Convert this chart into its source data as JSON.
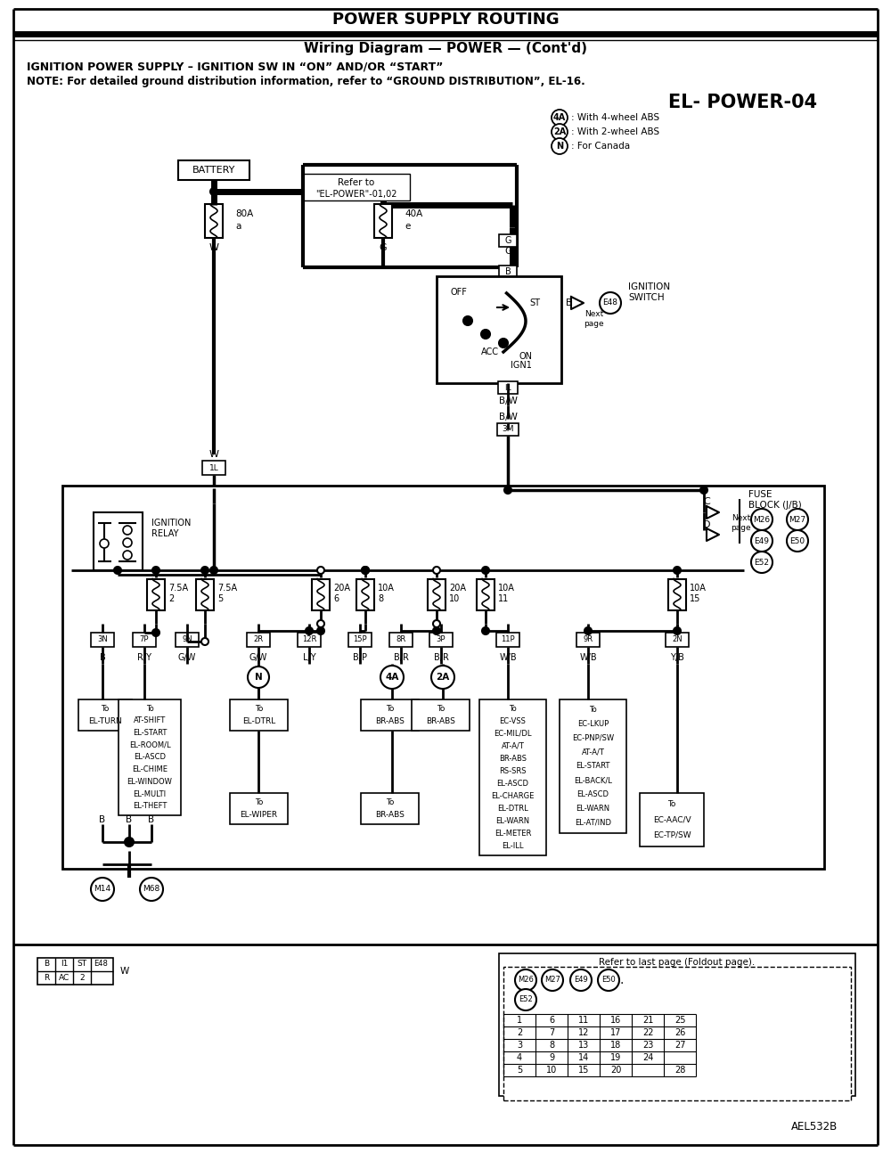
{
  "title1": "POWER SUPPLY ROUTING",
  "title2": "Wiring Diagram — POWER — (Cont'd)",
  "subtitle1": "IGNITION POWER SUPPLY – IGNITION SW IN “ON” AND/OR “START”",
  "subtitle2": "NOTE: For detailed ground distribution information, refer to “GROUND DISTRIBUTION”, EL-16.",
  "page_id": "EL- POWER-04",
  "watermark": "AEL532B",
  "bg_color": "#ffffff",
  "line_color": "#000000",
  "legend_4A": ": With 4-wheel ABS",
  "legend_2A": ": With 2-wheel ABS",
  "legend_N": ": For Canada",
  "ign_switch_label": "IGNITION\nSWITCH",
  "fuse_block_label1": "FUSE",
  "fuse_block_label2": "BLOCK (J/B)",
  "refer_text": "Refer to\n\"EL-POWER\"-01,02",
  "foldout_text": "Refer to last page (Foldout page).",
  "table_vals": [
    [
      "1",
      "6",
      "11",
      "16",
      "21",
      "25"
    ],
    [
      "2",
      "7",
      "12",
      "17",
      "22",
      "26"
    ],
    [
      "3",
      "8",
      "13",
      "18",
      "23",
      "27"
    ],
    [
      "4",
      "9",
      "14",
      "19",
      "24",
      ""
    ],
    [
      "5",
      "10",
      "15",
      "20",
      "",
      "28"
    ]
  ]
}
